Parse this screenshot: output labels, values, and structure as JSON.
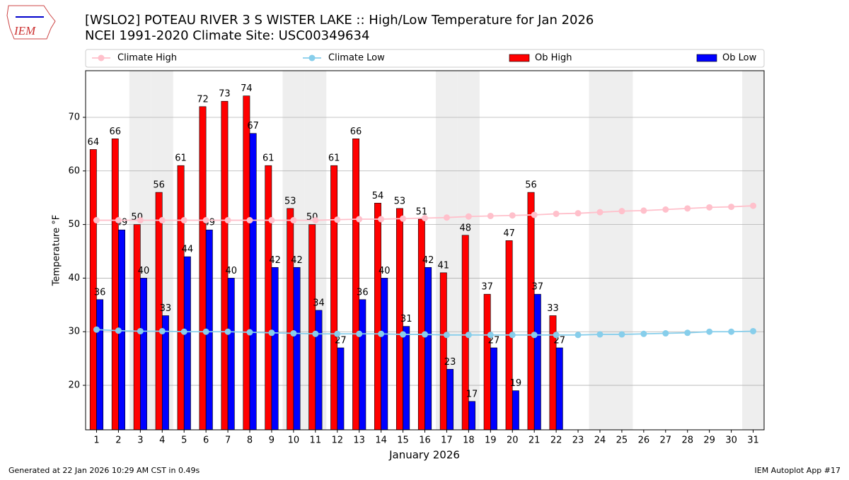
{
  "logo": "IEM",
  "footer": {
    "left": "Generated at 22 Jan 2026 10:29 AM CST in 0.49s",
    "right": "IEM Autoplot App #17"
  },
  "chart_data": {
    "type": "bar",
    "title": "[WSLO2] POTEAU RIVER 3 S WISTER LAKE :: High/Low Temperature for Jan 2026",
    "subtitle": "NCEI 1991-2020 Climate Site: USC00349634",
    "x_label": "January 2026",
    "y_label": "Temperature °F",
    "x": [
      1,
      2,
      3,
      4,
      5,
      6,
      7,
      8,
      9,
      10,
      11,
      12,
      13,
      14,
      15,
      16,
      17,
      18,
      19,
      20,
      21,
      22,
      23,
      24,
      25,
      26,
      27,
      28,
      29,
      30,
      31
    ],
    "xlim": [
      0.5,
      31.5
    ],
    "xticks": [
      1,
      2,
      3,
      4,
      5,
      6,
      7,
      8,
      9,
      10,
      11,
      12,
      13,
      14,
      15,
      16,
      17,
      18,
      19,
      20,
      21,
      22,
      23,
      24,
      25,
      26,
      27,
      28,
      29,
      30,
      31
    ],
    "ylim": [
      11.7,
      78.7
    ],
    "yticks": [
      20,
      30,
      40,
      50,
      60,
      70
    ],
    "grid": true,
    "shaded_days": [
      3,
      4,
      10,
      11,
      17,
      18,
      24,
      25,
      31
    ],
    "series": [
      {
        "name": "Climate High",
        "type": "line",
        "color": "#ffc0cb",
        "values": [
          50.8,
          50.8,
          50.8,
          50.8,
          50.8,
          50.8,
          50.8,
          50.8,
          50.8,
          50.8,
          50.8,
          50.9,
          51.0,
          51.0,
          51.1,
          51.2,
          51.3,
          51.5,
          51.6,
          51.7,
          51.8,
          52.0,
          52.1,
          52.3,
          52.5,
          52.6,
          52.8,
          53.0,
          53.2,
          53.3,
          53.5
        ]
      },
      {
        "name": "Climate Low",
        "type": "line",
        "color": "#87ceeb",
        "values": [
          30.4,
          30.2,
          30.1,
          30.1,
          30.0,
          30.0,
          30.0,
          29.9,
          29.8,
          29.7,
          29.6,
          29.6,
          29.6,
          29.6,
          29.5,
          29.5,
          29.4,
          29.4,
          29.4,
          29.4,
          29.4,
          29.4,
          29.4,
          29.5,
          29.5,
          29.6,
          29.7,
          29.8,
          30.0,
          30.0,
          30.1
        ]
      },
      {
        "name": "Ob High",
        "type": "bar",
        "color": "#ff0000",
        "values": [
          64,
          66,
          50,
          56,
          61,
          72,
          73,
          74,
          61,
          53,
          50,
          61,
          66,
          54,
          53,
          51,
          41,
          48,
          37,
          47,
          56,
          33,
          null,
          null,
          null,
          null,
          null,
          null,
          null,
          null,
          null
        ]
      },
      {
        "name": "Ob Low",
        "type": "bar",
        "color": "#0000ff",
        "values": [
          36,
          49,
          40,
          33,
          44,
          49,
          40,
          67,
          42,
          42,
          34,
          27,
          36,
          40,
          31,
          42,
          23,
          17,
          27,
          19,
          37,
          27,
          null,
          null,
          null,
          null,
          null,
          null,
          null,
          null,
          null
        ]
      }
    ]
  }
}
